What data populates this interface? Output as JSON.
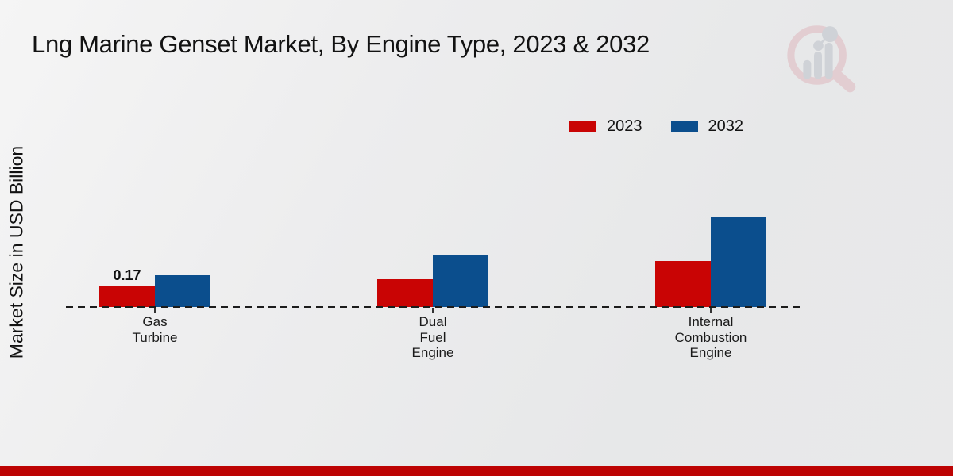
{
  "page": {
    "title": "Lng Marine Genset Market, By Engine Type, 2023 & 2032"
  },
  "chart_data": {
    "type": "bar",
    "title": "Lng Marine Genset Market, By Engine Type, 2023 & 2032",
    "ylabel": "Market Size in USD Billion",
    "xlabel": "",
    "categories": [
      "Gas Turbine",
      "Dual Fuel Engine",
      "Internal Combustion Engine"
    ],
    "series": [
      {
        "name": "2023",
        "color": "#c90404",
        "values": [
          0.17,
          0.23,
          0.38
        ]
      },
      {
        "name": "2032",
        "color": "#0b4e8d",
        "values": [
          0.26,
          0.43,
          0.74
        ]
      }
    ],
    "annotations": [
      {
        "series": 0,
        "category": 0,
        "text": "0.17"
      }
    ],
    "grid": false,
    "baseline_style": "dashed",
    "legend_position": "top-right"
  },
  "legend": {
    "items": [
      {
        "label": "2023",
        "color": "#c90404"
      },
      {
        "label": "2032",
        "color": "#0b4e8d"
      }
    ]
  },
  "icons": {
    "watermark": "market-research-magnifier-bar-chart-logo"
  },
  "colors": {
    "series_2023": "#c90404",
    "series_2032": "#0b4e8d",
    "footer_bar": "#bd0303",
    "axis_line": "#1c1c1c",
    "background": "#ececed",
    "text": "#121212"
  }
}
